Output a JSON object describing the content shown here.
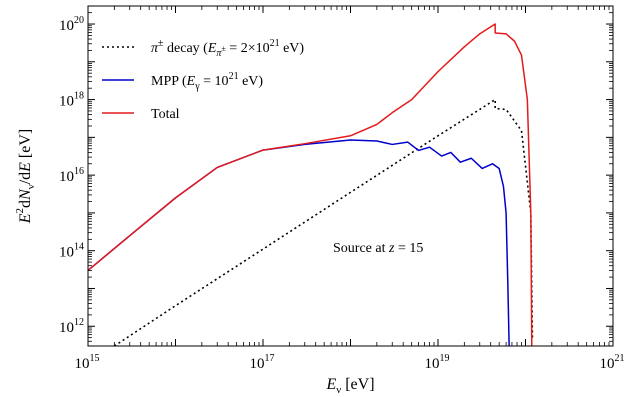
{
  "chart_data": {
    "type": "line",
    "xscale": "log",
    "yscale": "log",
    "xlim": [
      1000000000000000.0,
      1e+21
    ],
    "ylim": [
      300000000000.0,
      3e+20
    ],
    "xlabel": "E_ν [eV]",
    "ylabel": "E²dN_ν/dE [eV]",
    "x_ticks": [
      {
        "base": "10",
        "exp": "15"
      },
      {
        "base": "10",
        "exp": "17"
      },
      {
        "base": "10",
        "exp": "19"
      },
      {
        "base": "10",
        "exp": "21"
      }
    ],
    "y_ticks": [
      {
        "base": "10",
        "exp": "12"
      },
      {
        "base": "10",
        "exp": "14"
      },
      {
        "base": "10",
        "exp": "16"
      },
      {
        "base": "10",
        "exp": "18"
      },
      {
        "base": "10",
        "exp": "20"
      }
    ],
    "annotation": {
      "prefix": "Source at ",
      "var": "z",
      "suffix": " = 15"
    },
    "legend": {
      "position": "top-left",
      "entries": [
        {
          "label": "π± decay (Eπ± = 2×1021 eV)",
          "color": "#000000",
          "dash": "dotted"
        },
        {
          "label": "MPP (Eγ = 1021 eV)",
          "color": "#0000cc",
          "dash": "solid"
        },
        {
          "label": "Total",
          "color": "#e31a1c",
          "dash": "solid"
        }
      ]
    },
    "series": [
      {
        "name": "π± decay",
        "color": "#000000",
        "x": [
          2000000000000000.0,
          1e+16,
          1e+17,
          1e+18,
          1e+19,
          3e+19,
          4.5e+19,
          4.5e+19,
          6e+19,
          9e+19,
          1.15e+20,
          1.2e+20
        ],
        "y": [
          300000000000.0,
          3500000000000.0,
          110000000000000.0,
          3500000000000000.0,
          1.1e+17,
          5.5e+17,
          1e+18,
          5.8e+17,
          5.5e+17,
          1.5e+17,
          1000000000000000.0,
          500000000000.0
        ]
      },
      {
        "name": "MPP",
        "color": "#0000cc",
        "x": [
          1000000000000000.0,
          3000000000000000.0,
          1e+16,
          3e+16,
          1e+17,
          3e+17,
          1e+18,
          2e+18,
          3e+18,
          4.5e+18,
          6e+18,
          8e+18,
          1.1e+19,
          1.4e+19,
          1.8e+19,
          2.4e+19,
          3.2e+19,
          4.2e+19,
          5e+19,
          5.6e+19,
          6e+19,
          6.3e+19,
          6.5e+19
        ],
        "y": [
          30000000000000.0,
          250000000000000.0,
          2500000000000000.0,
          1.6e+16,
          4.6e+16,
          6.5e+16,
          8.5e+16,
          8e+16,
          6.5e+16,
          7.5e+16,
          4.5e+16,
          5.5e+16,
          3.2e+16,
          4e+16,
          2.2e+16,
          2.8e+16,
          1.5e+16,
          2e+16,
          1.5e+16,
          5000000000000000.0,
          1000000000000000.0,
          10000000000000.0,
          300000000000.0
        ]
      },
      {
        "name": "Total",
        "color": "#e31a1c",
        "x": [
          1000000000000000.0,
          3000000000000000.0,
          1e+16,
          3e+16,
          1e+17,
          3e+17,
          1e+18,
          2e+18,
          3e+18,
          5e+18,
          1e+19,
          2e+19,
          3e+19,
          4.5e+19,
          4.5e+19,
          6e+19,
          7.5e+19,
          9e+19,
          1.05e+20,
          1.15e+20,
          1.18e+20
        ],
        "y": [
          30000000000000.0,
          250000000000000.0,
          2500000000000000.0,
          1.6e+16,
          4.6e+16,
          6.8e+16,
          1.1e+17,
          2.2e+17,
          4.5e+17,
          1e+18,
          5.5e+18,
          2.5e+19,
          5.5e+19,
          1e+20,
          5.8e+19,
          5.5e+19,
          3.5e+19,
          1.5e+19,
          1e+18,
          1000000000000000.0,
          300000000000.0
        ]
      }
    ]
  }
}
